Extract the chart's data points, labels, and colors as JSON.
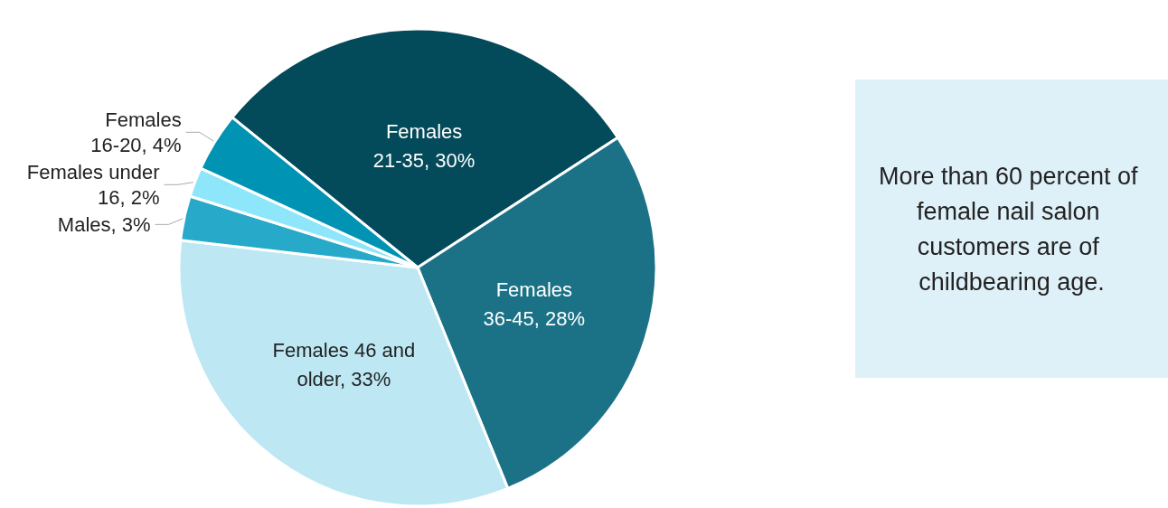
{
  "chart_data": {
    "type": "pie",
    "categories": [
      "Females 21-35",
      "Females 36-45",
      "Females 46 and older",
      "Males",
      "Females under 16",
      "Females 16-20"
    ],
    "value_labels": [
      "30%",
      "28%",
      "33%",
      "3%",
      "2%",
      "4%"
    ],
    "values": [
      30,
      28,
      33,
      3,
      2,
      4
    ],
    "colors": [
      "#034a5a",
      "#1b7286",
      "#bde8f3",
      "#27a9c9",
      "#8ee6fa",
      "#0093b3"
    ],
    "legend": false,
    "annotations": [
      "More than 60 percent of female nail salon customers are of childbearing age."
    ]
  }
}
